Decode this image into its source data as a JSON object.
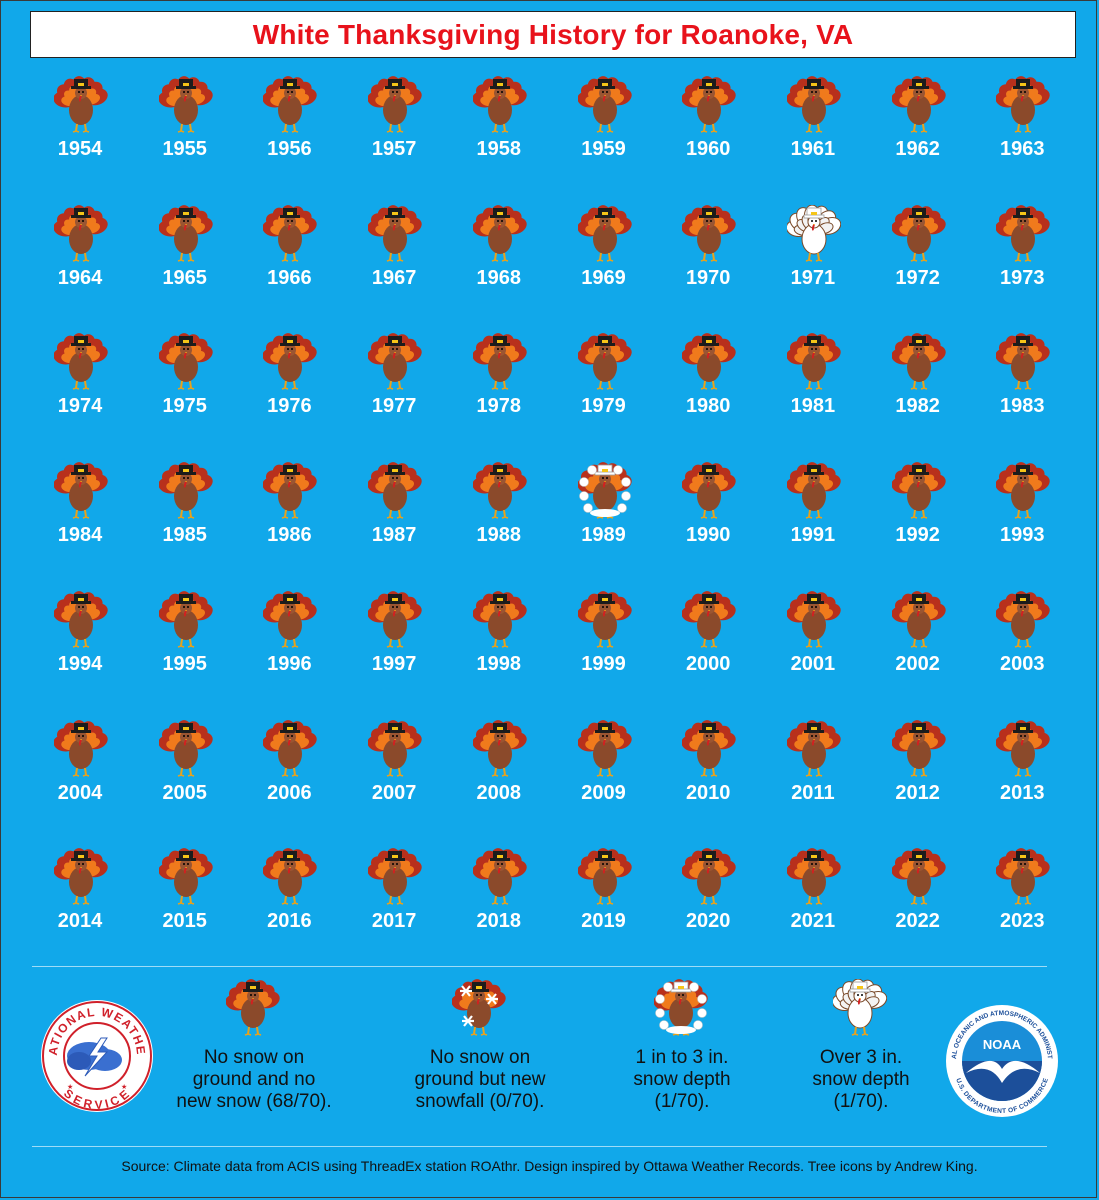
{
  "title": "White Thanksgiving History for Roanoke, VA",
  "chart_data": {
    "type": "table",
    "title": "White Thanksgiving History for Roanoke, VA",
    "columns": 10,
    "years": [
      1954,
      1955,
      1956,
      1957,
      1958,
      1959,
      1960,
      1961,
      1962,
      1963,
      1964,
      1965,
      1966,
      1967,
      1968,
      1969,
      1970,
      1971,
      1972,
      1973,
      1974,
      1975,
      1976,
      1977,
      1978,
      1979,
      1980,
      1981,
      1982,
      1983,
      1984,
      1985,
      1986,
      1987,
      1988,
      1989,
      1990,
      1991,
      1992,
      1993,
      1994,
      1995,
      1996,
      1997,
      1998,
      1999,
      2000,
      2001,
      2002,
      2003,
      2004,
      2005,
      2006,
      2007,
      2008,
      2009,
      2010,
      2011,
      2012,
      2013,
      2014,
      2015,
      2016,
      2017,
      2018,
      2019,
      2020,
      2021,
      2022,
      2023
    ],
    "category_codes": {
      "none": "No snow on ground and no new snow",
      "new_snow_only": "No snow on ground but new snowfall",
      "depth_1_3": "1 in to 3 in. snow depth",
      "depth_over_3": "Over 3 in. snow depth"
    },
    "special_years": {
      "1971": "depth_over_3",
      "1989": "depth_1_3"
    },
    "default_category": "none",
    "counts": {
      "none": 68,
      "new_snow_only": 0,
      "depth_1_3": 1,
      "depth_over_3": 1,
      "total": 70
    }
  },
  "legend": [
    {
      "category": "none",
      "label": "No snow on\nground and no\nnew snow (68/70)."
    },
    {
      "category": "new_snow_only",
      "label": "No snow on\nground but new\nsnowfall (0/70)."
    },
    {
      "category": "depth_1_3",
      "label": "1 in to 3 in.\nsnow depth\n(1/70)."
    },
    {
      "category": "depth_over_3",
      "label": "Over 3 in.\nsnow depth\n(1/70)."
    }
  ],
  "logos": {
    "nws": {
      "text_top": "NATIONAL WEATHER",
      "text_bottom": "SERVICE"
    },
    "noaa": {
      "center_text": "NOAA",
      "ring_text": "NATIONAL OCEANIC AND ATMOSPHERIC ADMINISTRATION",
      "ring_bottom": "U.S. DEPARTMENT OF COMMERCE"
    }
  },
  "footer": "Source: Climate data from ACIS using ThreadEx station ROAthr. Design inspired by Ottawa Weather Records. Tree icons by Andrew King.",
  "colors": {
    "background": "#11a8ea",
    "title": "#e8121b",
    "turkey_body": "#8b4a2b",
    "feather_outer": "#b8301c",
    "feather_inner": "#f07a1c",
    "hat": "#1c1c1c",
    "snow": "#ffffff"
  }
}
